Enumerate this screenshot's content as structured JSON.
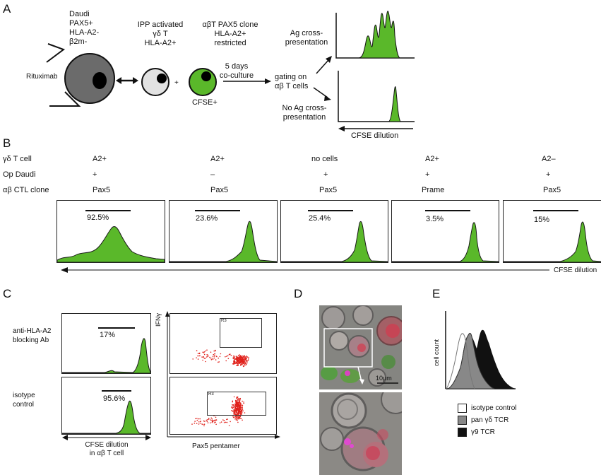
{
  "panel_letters": [
    "A",
    "B",
    "C",
    "D",
    "E"
  ],
  "panelA": {
    "daudi_lines": [
      "Daudi",
      "PAX5+",
      "HLA-A2-",
      "β2m-"
    ],
    "rituximab": "Rituximab",
    "ipp_lines": [
      "IPP activated",
      "γδ T",
      "HLA-A2+"
    ],
    "clone_lines": [
      "αβT PAX5 clone",
      "HLA-A2+",
      "restricted"
    ],
    "plus": "+",
    "cfse": "CFSE+",
    "coculture_lines": [
      "5 days",
      "co-culture"
    ],
    "gating_lines": [
      "gating on",
      "αβ T cells"
    ],
    "ag_cross_lines": [
      "Ag cross-",
      "presentation"
    ],
    "no_ag_lines": [
      "No Ag cross-",
      "presentation"
    ],
    "cfse_dilution": "CFSE dilution",
    "colors": {
      "green": "#5ab82a",
      "dark_gray": "#6b6b6b",
      "light_gray": "#e2e2e2"
    }
  },
  "panelB": {
    "row_labels": [
      "γδ T cell",
      "Op Daudi",
      "αβ CTL clone"
    ],
    "columns": [
      {
        "gd": "A2+",
        "op": "+",
        "clone": "Pax5",
        "pct": "92.5%"
      },
      {
        "gd": "A2+",
        "op": "–",
        "clone": "Pax5",
        "pct": "23.6%"
      },
      {
        "gd": "no cells",
        "op": "+",
        "clone": "Pax5",
        "pct": "25.4%"
      },
      {
        "gd": "A2+",
        "op": "+",
        "clone": "Prame",
        "pct": "3.5%"
      },
      {
        "gd": "A2–",
        "op": "+",
        "clone": "Pax5",
        "pct": "15%"
      }
    ],
    "axis_label": "CFSE dilution"
  },
  "panelC": {
    "row1_label_lines": [
      "anti-HLA-A2",
      "blocking Ab"
    ],
    "row2_label_lines": [
      "isotype",
      "control"
    ],
    "pct1": "17%",
    "pct2": "95.6%",
    "x_label_lines": [
      "CFSE dilution",
      "in αβ T cell"
    ],
    "dot_ylabel": "IFNγ",
    "dot_xlabel": "Pax5 pentamer",
    "gate_label": "R3"
  },
  "panelD": {
    "scale": "10μm"
  },
  "panelE": {
    "ylabel": "cell count",
    "legend": [
      {
        "label": "isotype control",
        "color": "#ffffff"
      },
      {
        "label": "pan γδ TCR",
        "color": "#888888"
      },
      {
        "label": "γ9 TCR",
        "color": "#111111"
      }
    ]
  }
}
